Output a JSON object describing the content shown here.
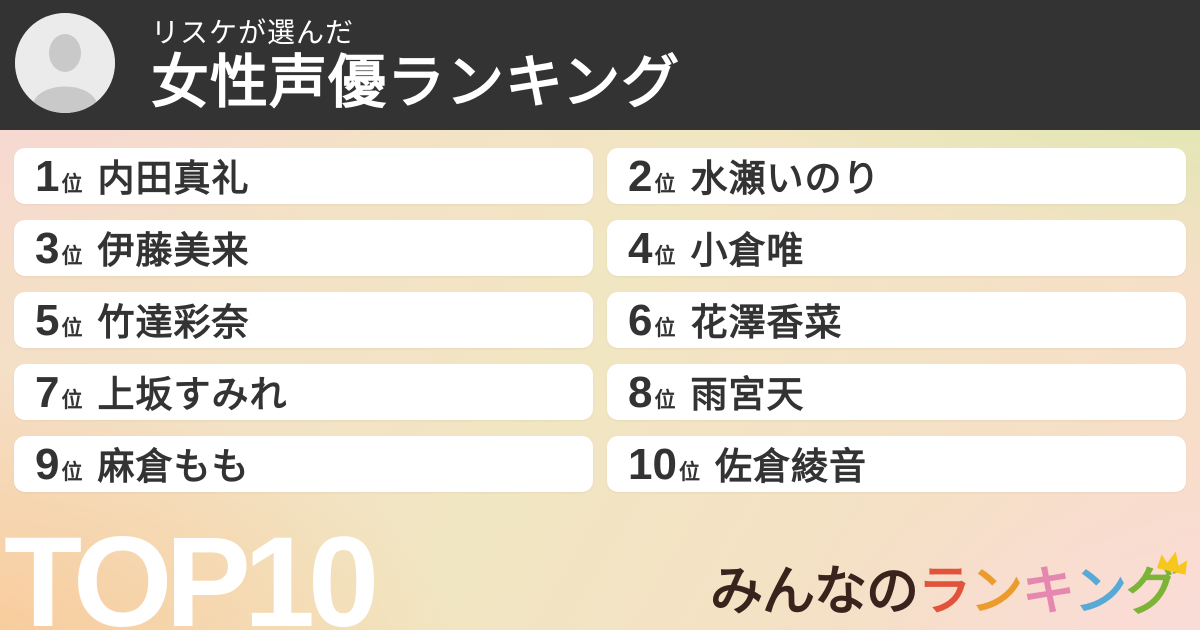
{
  "header": {
    "subtitle": "リスケが選んだ",
    "title": "女性声優ランキング"
  },
  "ranking": {
    "rank_suffix": "位",
    "items": [
      {
        "rank": "1",
        "name": "内田真礼"
      },
      {
        "rank": "2",
        "name": "水瀬いのり"
      },
      {
        "rank": "3",
        "name": "伊藤美来"
      },
      {
        "rank": "4",
        "name": "小倉唯"
      },
      {
        "rank": "5",
        "name": "竹達彩奈"
      },
      {
        "rank": "6",
        "name": "花澤香菜"
      },
      {
        "rank": "7",
        "name": "上坂すみれ"
      },
      {
        "rank": "8",
        "name": "雨宮天"
      },
      {
        "rank": "9",
        "name": "麻倉もも"
      },
      {
        "rank": "10",
        "name": "佐倉綾音"
      }
    ]
  },
  "footer": {
    "badge": "TOP10",
    "logo_chars": [
      {
        "char": "み",
        "color": "#3B231D"
      },
      {
        "char": "ん",
        "color": "#3B231D"
      },
      {
        "char": "な",
        "color": "#3B231D"
      },
      {
        "char": "の",
        "color": "#3B231D"
      },
      {
        "char": "ラ",
        "color": "#E1543B"
      },
      {
        "char": "ン",
        "color": "#EC9C2E"
      },
      {
        "char": "キ",
        "color": "#E687B0"
      },
      {
        "char": "ン",
        "color": "#57A9D6"
      },
      {
        "char": "グ",
        "color": "#7CB437"
      }
    ],
    "crown_color": "#F6C71C"
  },
  "colors": {
    "header_bg": "#333333",
    "card_bg": "#FFFFFF",
    "text_dark": "#333333",
    "bg_top_left": "#F8D6DB",
    "bg_top_right": "#D2EDA4",
    "bg_bottom_left": "#F9C996",
    "bg_bottom_right": "#FBDCDB"
  }
}
